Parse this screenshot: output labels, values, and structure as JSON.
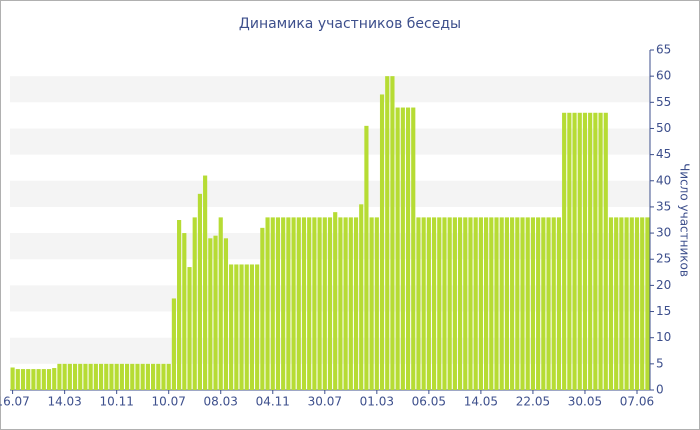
{
  "chart_data": {
    "type": "bar",
    "title": "Динамика участников беседы",
    "y_label": "Число участников",
    "categories": [
      "16.07",
      null,
      null,
      null,
      null,
      null,
      null,
      null,
      null,
      null,
      "14.03",
      null,
      null,
      null,
      null,
      null,
      null,
      null,
      null,
      null,
      "10.11",
      null,
      null,
      null,
      null,
      null,
      null,
      null,
      null,
      null,
      "10.07",
      null,
      null,
      null,
      null,
      null,
      null,
      null,
      null,
      null,
      "08.03",
      null,
      null,
      null,
      null,
      null,
      null,
      null,
      null,
      null,
      "04.11",
      null,
      null,
      null,
      null,
      null,
      null,
      null,
      null,
      null,
      "30.07",
      null,
      null,
      null,
      null,
      null,
      null,
      null,
      null,
      null,
      "01.03",
      null,
      null,
      null,
      null,
      null,
      null,
      null,
      null,
      null,
      "06.05",
      null,
      null,
      null,
      null,
      null,
      null,
      null,
      null,
      null,
      "14.05",
      null,
      null,
      null,
      null,
      null,
      null,
      null,
      null,
      null,
      "22.05",
      null,
      null,
      null,
      null,
      null,
      null,
      null,
      null,
      null,
      "30.05",
      null,
      null,
      null,
      null,
      null,
      null,
      null,
      null,
      null,
      "07.06",
      null,
      null
    ],
    "values": [
      4.3,
      4,
      4,
      4,
      4,
      4,
      4,
      4,
      4.2,
      5,
      5,
      5,
      5,
      5,
      5,
      5,
      5,
      5,
      5,
      5,
      5,
      5,
      5,
      5,
      5,
      5,
      5,
      5,
      5,
      5,
      5,
      17.5,
      32.5,
      30,
      23.5,
      33,
      37.5,
      41,
      29,
      29.5,
      33,
      29,
      24,
      24,
      24,
      24,
      24,
      24,
      31,
      33,
      33,
      33,
      33,
      33,
      33,
      33,
      33,
      33,
      33,
      33,
      33,
      33,
      34,
      33,
      33,
      33,
      33,
      35.5,
      50.5,
      33,
      33,
      56.5,
      60,
      60,
      54,
      54,
      54,
      54,
      33,
      33,
      33,
      33,
      33,
      33,
      33,
      33,
      33,
      33,
      33,
      33,
      33,
      33,
      33,
      33,
      33,
      33,
      33,
      33,
      33,
      33,
      33,
      33,
      33,
      33,
      33,
      33,
      53,
      53,
      53,
      53,
      53,
      53,
      53,
      53,
      53,
      33,
      33,
      33,
      33,
      33,
      33,
      33,
      33
    ],
    "color": "#b6dc34",
    "ylim": [
      0,
      65
    ],
    "yticks": [
      0,
      5,
      10,
      15,
      20,
      25,
      30,
      35,
      40,
      45,
      50,
      55,
      60,
      65
    ],
    "grid": true
  }
}
